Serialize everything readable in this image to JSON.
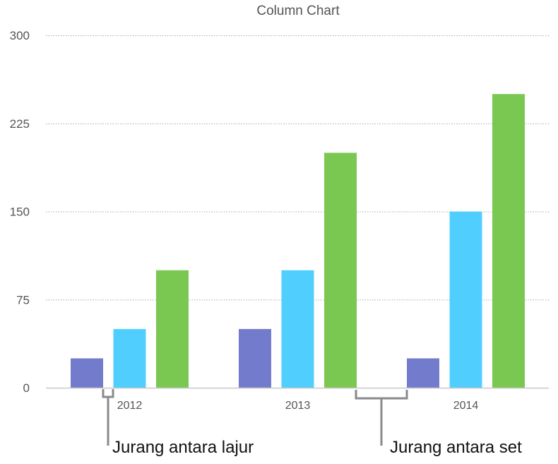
{
  "chart_data": {
    "type": "bar",
    "title": "Column Chart",
    "categories": [
      "2012",
      "2013",
      "2014"
    ],
    "series": [
      {
        "values": [
          25,
          50,
          25
        ],
        "color": "#737bcc"
      },
      {
        "values": [
          50,
          100,
          150
        ],
        "color": "#50cfff"
      },
      {
        "values": [
          100,
          200,
          250
        ],
        "color": "#7ac852"
      }
    ],
    "ylim": [
      0,
      300
    ],
    "yticks": [
      0,
      75,
      150,
      225,
      300
    ],
    "grid": true,
    "xlabel": "",
    "ylabel": "",
    "annotations": [
      {
        "text": "Jurang antara lajur",
        "target": "gap between columns"
      },
      {
        "text": "Jurang antara set",
        "target": "gap between sets"
      }
    ]
  }
}
